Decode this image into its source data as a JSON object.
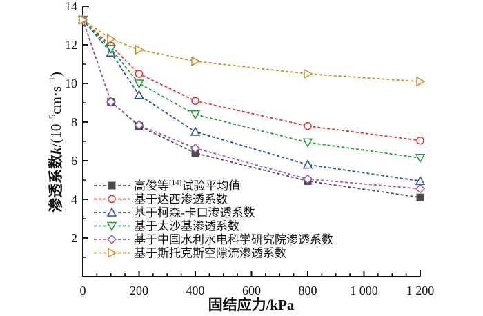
{
  "chart_data": {
    "type": "line",
    "title": "",
    "xlabel": "固结应力/kPa",
    "ylabel": "渗透系数k/(10⁻⁵cm·s⁻¹)",
    "ylabel_parts": {
      "main": "渗透系数",
      "var": "k",
      "unit_pre": "/(10",
      "exp1": "−5",
      "unit_mid": "cm·s",
      "exp2": "−1",
      "unit_post": ")"
    },
    "xlim": [
      0,
      1200
    ],
    "ylim": [
      0,
      14
    ],
    "xticks": [
      0,
      200,
      400,
      600,
      800,
      1000,
      1200
    ],
    "xtick_labels": [
      "0",
      "200",
      "400",
      "600",
      "800",
      "1 000",
      "1 200"
    ],
    "yticks": [
      2,
      4,
      6,
      8,
      10,
      12,
      14
    ],
    "ytick_labels": [
      "2",
      "4",
      "6",
      "8",
      "10",
      "12",
      "14"
    ],
    "grid": false,
    "legend_position": "bottom-left",
    "x": [
      0,
      100,
      200,
      400,
      800,
      1200
    ],
    "series": [
      {
        "name": "高俊等[14]试验平均值",
        "name_main": "高俊等",
        "name_sup": "[14]",
        "name_tail": "试验平均值",
        "color": "#4d4d4d",
        "marker": "square-filled",
        "values": [
          13.3,
          9.05,
          7.8,
          6.4,
          4.95,
          4.1
        ]
      },
      {
        "name": "基于达西渗透系数",
        "color": "#e8322e",
        "marker": "circle",
        "values": [
          13.3,
          11.95,
          10.5,
          9.1,
          7.8,
          7.05
        ]
      },
      {
        "name": "基于柯森-卡口渗透系数",
        "color": "#2453a5",
        "marker": "triangle-up",
        "values": [
          13.3,
          11.6,
          9.4,
          7.5,
          5.8,
          4.95
        ]
      },
      {
        "name": "基于太沙基渗透系数",
        "color": "#1f9a3c",
        "marker": "triangle-down",
        "values": [
          13.3,
          11.8,
          10.0,
          8.4,
          6.95,
          6.15
        ]
      },
      {
        "name": "基于中国水利水电科学研究院渗透系数",
        "color": "#9a5bb0",
        "marker": "diamond",
        "values": [
          13.3,
          9.05,
          7.85,
          6.65,
          5.05,
          4.55
        ]
      },
      {
        "name": "基于斯托克斯空隙流渗透系数",
        "color": "#d68f22",
        "marker": "triangle-right",
        "values": [
          13.3,
          12.3,
          11.75,
          11.15,
          10.5,
          10.1
        ]
      }
    ]
  }
}
